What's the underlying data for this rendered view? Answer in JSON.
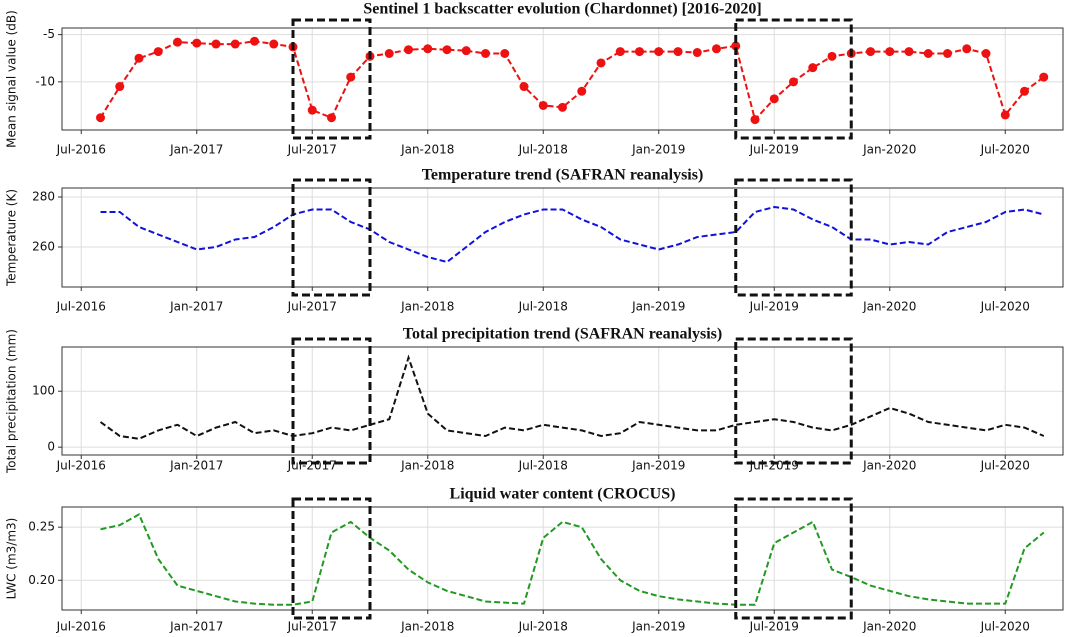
{
  "chart_data": [
    {
      "type": "line",
      "title": "Sentinel 1 backscatter evolution (Chardonnet) [2016-2020]",
      "ylabel": "Mean signal value (dB)",
      "x": [
        "2016-08",
        "2016-09",
        "2016-10",
        "2016-11",
        "2016-12",
        "2017-01",
        "2017-02",
        "2017-03",
        "2017-04",
        "2017-05",
        "2017-06",
        "2017-07",
        "2017-08",
        "2017-09",
        "2017-10",
        "2017-11",
        "2017-12",
        "2018-01",
        "2018-02",
        "2018-03",
        "2018-04",
        "2018-05",
        "2018-06",
        "2018-07",
        "2018-08",
        "2018-09",
        "2018-10",
        "2018-11",
        "2018-12",
        "2019-01",
        "2019-02",
        "2019-03",
        "2019-04",
        "2019-05",
        "2019-06",
        "2019-07",
        "2019-08",
        "2019-09",
        "2019-10",
        "2019-11",
        "2019-12",
        "2020-01",
        "2020-02",
        "2020-03",
        "2020-04",
        "2020-05",
        "2020-06",
        "2020-07",
        "2020-08",
        "2020-09"
      ],
      "series": [
        {
          "color": "#ee1111",
          "values": [
            -13.8,
            -10.5,
            -7.5,
            -6.8,
            -5.8,
            -5.9,
            -6,
            -6,
            -5.7,
            -6,
            -6.3,
            -13,
            -13.8,
            -9.5,
            -7.3,
            -7,
            -6.6,
            -6.5,
            -6.6,
            -6.7,
            -7,
            -7,
            -10.5,
            -12.5,
            -12.7,
            -11,
            -8,
            -6.8,
            -6.8,
            -6.8,
            -6.8,
            -6.9,
            -6.5,
            -6.2,
            -14,
            -11.8,
            -10,
            -8.5,
            -7.3,
            -7,
            -6.8,
            -6.8,
            -6.8,
            -7,
            -7,
            -6.5,
            -7,
            -13.5,
            -11,
            -9.5
          ]
        }
      ],
      "markers": true,
      "linestyle": "dashed",
      "grid": true,
      "xlim": [
        "2016-06",
        "2020-10"
      ],
      "ylim": [
        -15.1,
        -4.3
      ],
      "yticks": [
        -5,
        -10
      ],
      "xticks": [
        {
          "value": "2016-07",
          "label": "Jul-2016"
        },
        {
          "value": "2017-01",
          "label": "Jan-2017"
        },
        {
          "value": "2017-07",
          "label": "Jul-2017"
        },
        {
          "value": "2018-01",
          "label": "Jan-2018"
        },
        {
          "value": "2018-07",
          "label": "Jul-2018"
        },
        {
          "value": "2019-01",
          "label": "Jan-2019"
        },
        {
          "value": "2019-07",
          "label": "Jul-2019"
        },
        {
          "value": "2020-01",
          "label": "Jan-2020"
        },
        {
          "value": "2020-07",
          "label": "Jul-2020"
        }
      ],
      "highlight": [
        [
          "2017-06",
          "2017-10"
        ],
        [
          "2019-05",
          "2019-11"
        ]
      ]
    },
    {
      "type": "line",
      "title": "Temperature trend (SAFRAN reanalysis)",
      "ylabel": "Temperature (K)",
      "x": [
        "2016-08",
        "2016-09",
        "2016-10",
        "2016-11",
        "2016-12",
        "2017-01",
        "2017-02",
        "2017-03",
        "2017-04",
        "2017-05",
        "2017-06",
        "2017-07",
        "2017-08",
        "2017-09",
        "2017-10",
        "2017-11",
        "2017-12",
        "2018-01",
        "2018-02",
        "2018-03",
        "2018-04",
        "2018-05",
        "2018-06",
        "2018-07",
        "2018-08",
        "2018-09",
        "2018-10",
        "2018-11",
        "2018-12",
        "2019-01",
        "2019-02",
        "2019-03",
        "2019-04",
        "2019-05",
        "2019-06",
        "2019-07",
        "2019-08",
        "2019-09",
        "2019-10",
        "2019-11",
        "2019-12",
        "2020-01",
        "2020-02",
        "2020-03",
        "2020-04",
        "2020-05",
        "2020-06",
        "2020-07",
        "2020-08",
        "2020-09"
      ],
      "series": [
        {
          "color": "#1111dd",
          "values": [
            274,
            274,
            268,
            265,
            262,
            259,
            260,
            263,
            264,
            268,
            273,
            275,
            275,
            270,
            267,
            262,
            259,
            256,
            254,
            260,
            266,
            270,
            273,
            275,
            275,
            271,
            268,
            263,
            261,
            259,
            261,
            264,
            265,
            266,
            274,
            276,
            275,
            271,
            268,
            263,
            263,
            261,
            262,
            261,
            266,
            268,
            270,
            274,
            275,
            273
          ]
        }
      ],
      "markers": false,
      "linestyle": "dashed",
      "grid": true,
      "xlim": [
        "2016-06",
        "2020-10"
      ],
      "ylim": [
        244,
        283.6
      ],
      "yticks": [
        260,
        280
      ],
      "xticks": [
        {
          "value": "2016-07",
          "label": "Jul-2016"
        },
        {
          "value": "2017-01",
          "label": "Jan-2017"
        },
        {
          "value": "2017-07",
          "label": "Jul-2017"
        },
        {
          "value": "2018-01",
          "label": "Jan-2018"
        },
        {
          "value": "2018-07",
          "label": "Jul-2018"
        },
        {
          "value": "2019-01",
          "label": "Jan-2019"
        },
        {
          "value": "2019-07",
          "label": "Jul-2019"
        },
        {
          "value": "2020-01",
          "label": "Jan-2020"
        },
        {
          "value": "2020-07",
          "label": "Jul-2020"
        }
      ],
      "highlight": [
        [
          "2017-06",
          "2017-10"
        ],
        [
          "2019-05",
          "2019-11"
        ]
      ]
    },
    {
      "type": "line",
      "title": "Total precipitation trend (SAFRAN reanalysis)",
      "ylabel": "Total precipitation (mm)",
      "x": [
        "2016-08",
        "2016-09",
        "2016-10",
        "2016-11",
        "2016-12",
        "2017-01",
        "2017-02",
        "2017-03",
        "2017-04",
        "2017-05",
        "2017-06",
        "2017-07",
        "2017-08",
        "2017-09",
        "2017-10",
        "2017-11",
        "2017-12",
        "2018-01",
        "2018-02",
        "2018-03",
        "2018-04",
        "2018-05",
        "2018-06",
        "2018-07",
        "2018-08",
        "2018-09",
        "2018-10",
        "2018-11",
        "2018-12",
        "2019-01",
        "2019-02",
        "2019-03",
        "2019-04",
        "2019-05",
        "2019-06",
        "2019-07",
        "2019-08",
        "2019-09",
        "2019-10",
        "2019-11",
        "2019-12",
        "2020-01",
        "2020-02",
        "2020-03",
        "2020-04",
        "2020-05",
        "2020-06",
        "2020-07",
        "2020-08",
        "2020-09"
      ],
      "series": [
        {
          "color": "#111111",
          "values": [
            45,
            20,
            15,
            30,
            40,
            20,
            35,
            45,
            25,
            30,
            20,
            25,
            35,
            30,
            40,
            50,
            160,
            60,
            30,
            25,
            20,
            35,
            30,
            40,
            35,
            30,
            20,
            25,
            45,
            40,
            35,
            30,
            30,
            40,
            45,
            50,
            45,
            35,
            30,
            40,
            55,
            70,
            60,
            45,
            40,
            35,
            30,
            40,
            35,
            20
          ]
        }
      ],
      "markers": false,
      "linestyle": "dashed",
      "grid": true,
      "xlim": [
        "2016-06",
        "2020-10"
      ],
      "ylim": [
        -14,
        179
      ],
      "yticks": [
        0,
        100
      ],
      "xticks": [
        {
          "value": "2016-07",
          "label": "Jul-2016"
        },
        {
          "value": "2017-01",
          "label": "Jan-2017"
        },
        {
          "value": "2017-07",
          "label": "Jul-2017"
        },
        {
          "value": "2018-01",
          "label": "Jan-2018"
        },
        {
          "value": "2018-07",
          "label": "Jul-2018"
        },
        {
          "value": "2019-01",
          "label": "Jan-2019"
        },
        {
          "value": "2019-07",
          "label": "Jul-2019"
        },
        {
          "value": "2020-01",
          "label": "Jan-2020"
        },
        {
          "value": "2020-07",
          "label": "Jul-2020"
        }
      ],
      "highlight": [
        [
          "2017-06",
          "2017-10"
        ],
        [
          "2019-05",
          "2019-11"
        ]
      ]
    },
    {
      "type": "line",
      "title": "Liquid water content (CROCUS)",
      "ylabel": "LWC (m3/m3)",
      "x": [
        "2016-08",
        "2016-09",
        "2016-10",
        "2016-11",
        "2016-12",
        "2017-01",
        "2017-02",
        "2017-03",
        "2017-04",
        "2017-05",
        "2017-06",
        "2017-07",
        "2017-08",
        "2017-09",
        "2017-10",
        "2017-11",
        "2017-12",
        "2018-01",
        "2018-02",
        "2018-03",
        "2018-04",
        "2018-05",
        "2018-06",
        "2018-07",
        "2018-08",
        "2018-09",
        "2018-10",
        "2018-11",
        "2018-12",
        "2019-01",
        "2019-02",
        "2019-03",
        "2019-04",
        "2019-05",
        "2019-06",
        "2019-07",
        "2019-08",
        "2019-09",
        "2019-10",
        "2019-11",
        "2019-12",
        "2020-01",
        "2020-02",
        "2020-03",
        "2020-04",
        "2020-05",
        "2020-06",
        "2020-07",
        "2020-08",
        "2020-09"
      ],
      "series": [
        {
          "color": "#229922",
          "values": [
            0.248,
            0.252,
            0.262,
            0.22,
            0.195,
            0.19,
            0.185,
            0.18,
            0.178,
            0.177,
            0.177,
            0.18,
            0.245,
            0.255,
            0.24,
            0.228,
            0.21,
            0.198,
            0.19,
            0.185,
            0.18,
            0.179,
            0.178,
            0.24,
            0.255,
            0.25,
            0.22,
            0.2,
            0.19,
            0.185,
            0.182,
            0.18,
            0.178,
            0.177,
            0.177,
            0.235,
            0.245,
            0.255,
            0.21,
            0.203,
            0.195,
            0.19,
            0.185,
            0.182,
            0.18,
            0.178,
            0.178,
            0.178,
            0.23,
            0.245
          ]
        }
      ],
      "markers": false,
      "linestyle": "dashed",
      "grid": true,
      "xlim": [
        "2016-06",
        "2020-10"
      ],
      "ylim": [
        0.172,
        0.269
      ],
      "yticks": [
        {
          "value": 0.2,
          "label": "0.20"
        },
        0.25
      ],
      "xticks": [
        {
          "value": "2016-07",
          "label": "Jul-2016"
        },
        {
          "value": "2017-01",
          "label": "Jan-2017"
        },
        {
          "value": "2017-07",
          "label": "Jul-2017"
        },
        {
          "value": "2018-01",
          "label": "Jan-2018"
        },
        {
          "value": "2018-07",
          "label": "Jul-2018"
        },
        {
          "value": "2019-01",
          "label": "Jan-2019"
        },
        {
          "value": "2019-07",
          "label": "Jul-2019"
        },
        {
          "value": "2020-01",
          "label": "Jan-2020"
        },
        {
          "value": "2020-07",
          "label": "Jul-2020"
        }
      ],
      "highlight": [
        [
          "2017-06",
          "2017-10"
        ],
        [
          "2019-05",
          "2019-11"
        ]
      ]
    }
  ]
}
